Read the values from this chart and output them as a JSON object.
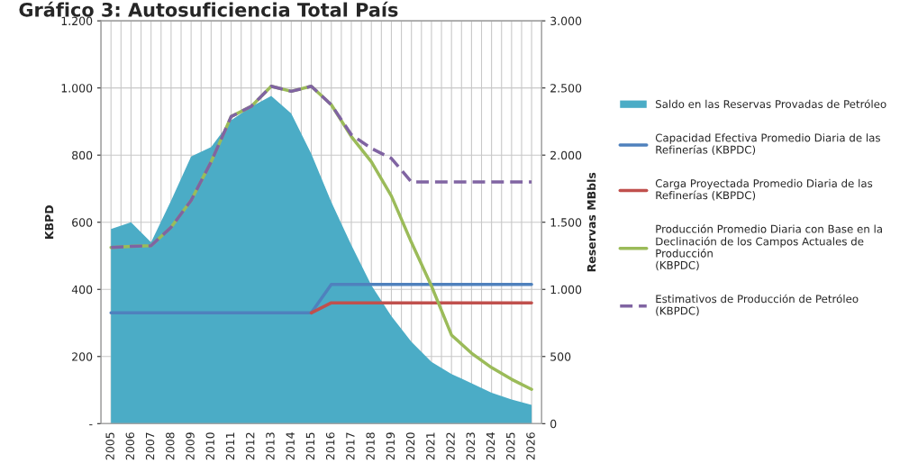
{
  "chart_data": {
    "type": "line",
    "title": "Gráfico 3: Autosuficiencia Total País",
    "ylabel": "KBPD",
    "y2label": "Reservas MBbls",
    "categories": [
      "2005",
      "2006",
      "2007",
      "2008",
      "2009",
      "2010",
      "2011",
      "2012",
      "2013",
      "2014",
      "2015",
      "2016",
      "2017",
      "2018",
      "2019",
      "2020",
      "2021",
      "2022",
      "2023",
      "2024",
      "2025",
      "2026"
    ],
    "series": [
      {
        "name": "Saldo en las Reservas Provadas de Petróleo",
        "type": "area",
        "axis": "y2",
        "color": "#4bacc6",
        "values": [
          1450,
          1500,
          1350,
          1660,
          1990,
          2060,
          2260,
          2360,
          2440,
          2310,
          2010,
          1650,
          1330,
          1030,
          800,
          610,
          460,
          370,
          300,
          230,
          180,
          140
        ]
      },
      {
        "name": "Capacidad Efectiva Promedio Diaria de las\nRefinerías (KBPDC)",
        "color": "#4f81bd",
        "values": [
          330,
          330,
          330,
          330,
          330,
          330,
          330,
          330,
          330,
          330,
          330,
          415,
          415,
          415,
          415,
          415,
          415,
          415,
          415,
          415,
          415,
          415
        ]
      },
      {
        "name": "Carga Proyectada Promedio Diaria de las\nRefinerías (KBPDC)",
        "color": "#c0504d",
        "values": [
          null,
          null,
          null,
          null,
          null,
          null,
          null,
          null,
          null,
          null,
          330,
          360,
          360,
          360,
          360,
          360,
          360,
          360,
          360,
          360,
          360,
          360
        ]
      },
      {
        "name": "Producción Promedio Diaria con Base en la\nDeclinación de los Campos Actuales de\nProducción\n(KBPDC)",
        "color": "#9bbb59",
        "values": [
          525,
          528,
          530,
          585,
          665,
          780,
          915,
          945,
          1005,
          990,
          1005,
          950,
          855,
          780,
          678,
          540,
          410,
          264,
          210,
          167,
          132,
          102
        ]
      },
      {
        "name": "Estimativos de Producción de Petróleo\n(KBPDC)",
        "color": "#8064a2",
        "line_style": "dashed",
        "values": [
          525,
          528,
          530,
          585,
          665,
          780,
          915,
          945,
          1005,
          990,
          1005,
          950,
          861,
          820,
          790,
          720,
          720,
          720,
          720,
          720,
          720,
          720
        ]
      }
    ],
    "ylim": [
      0,
      1200
    ],
    "yticks": [
      {
        "value": 0,
        "label": "-"
      },
      200,
      400,
      600,
      800,
      {
        "value": 1000,
        "label": "1.000"
      },
      {
        "value": 1200,
        "label": "1.200"
      }
    ],
    "y2lim": [
      0,
      3000
    ],
    "y2ticks": [
      0,
      500,
      {
        "value": 1000,
        "label": "1.000"
      },
      {
        "value": 1500,
        "label": "1.500"
      },
      {
        "value": 2000,
        "label": "2.000"
      },
      {
        "value": 2500,
        "label": "2.500"
      },
      {
        "value": 3000,
        "label": "3.000"
      }
    ],
    "grid": true,
    "legend": "right",
    "marker": "none"
  }
}
